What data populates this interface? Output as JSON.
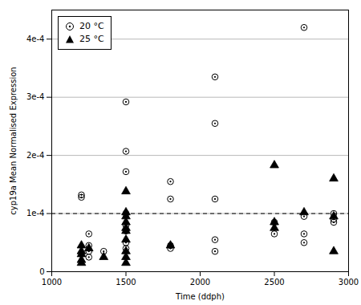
{
  "chart_data": {
    "type": "scatter",
    "xlabel": "Time (ddph)",
    "ylabel": "cyp19a Mean Normalised Expression",
    "xlim": [
      1000,
      3000
    ],
    "ylim": [
      0,
      0.00045
    ],
    "xticks": [
      1000,
      1500,
      2000,
      2500,
      3000
    ],
    "yticks": [
      0,
      {
        "value": 0.0001,
        "label": "1e-4"
      },
      {
        "value": 0.0002,
        "label": "2e-4"
      },
      {
        "value": 0.0003,
        "label": "3e-4"
      },
      {
        "value": 0.0004,
        "label": "4e-4"
      }
    ],
    "grid": "y",
    "legend": "upper left",
    "reference_line": {
      "y": 0.0001,
      "line_style": "dashed",
      "color": "#000000"
    },
    "series": [
      {
        "name": "20 °C",
        "color": "#000000",
        "marker": "odot",
        "x": [
          1200,
          1200,
          1250,
          1250,
          1250,
          1250,
          1350,
          1500,
          1500,
          1500,
          1500,
          1500,
          1500,
          1500,
          1500,
          1800,
          1800,
          1800,
          1800,
          2100,
          2100,
          2100,
          2100,
          2100,
          2500,
          2500,
          2700,
          2700,
          2700,
          2700,
          2900,
          2900,
          2900
        ],
        "values": [
          0.000132,
          0.000128,
          6.5e-05,
          4.5e-05,
          3.5e-05,
          2.5e-05,
          3.5e-05,
          0.000292,
          0.000207,
          0.000172,
          0.0001,
          8e-05,
          7e-05,
          5e-05,
          4e-05,
          0.000155,
          0.000125,
          4.5e-05,
          4e-05,
          0.000335,
          0.000255,
          0.000125,
          5.5e-05,
          3.5e-05,
          8.5e-05,
          6.5e-05,
          0.00042,
          9.5e-05,
          6.5e-05,
          5e-05,
          0.0001,
          9e-05,
          8.5e-05
        ]
      },
      {
        "name": "25 °C",
        "color": "#000000",
        "marker": "triangle",
        "x": [
          1200,
          1200,
          1200,
          1200,
          1200,
          1250,
          1350,
          1500,
          1500,
          1500,
          1500,
          1500,
          1500,
          1500,
          1500,
          1500,
          1500,
          1800,
          2500,
          2500,
          2500,
          2700,
          2900,
          2900,
          2900
        ],
        "values": [
          4.5e-05,
          3.5e-05,
          3e-05,
          2e-05,
          1.5e-05,
          4e-05,
          2.5e-05,
          0.000138,
          0.000102,
          9.5e-05,
          8.5e-05,
          7.5e-05,
          7e-05,
          5.5e-05,
          3.5e-05,
          2.5e-05,
          1.5e-05,
          4.5e-05,
          0.000183,
          8.5e-05,
          7.5e-05,
          0.000102,
          0.00016,
          9.5e-05,
          3.5e-05
        ]
      }
    ]
  }
}
